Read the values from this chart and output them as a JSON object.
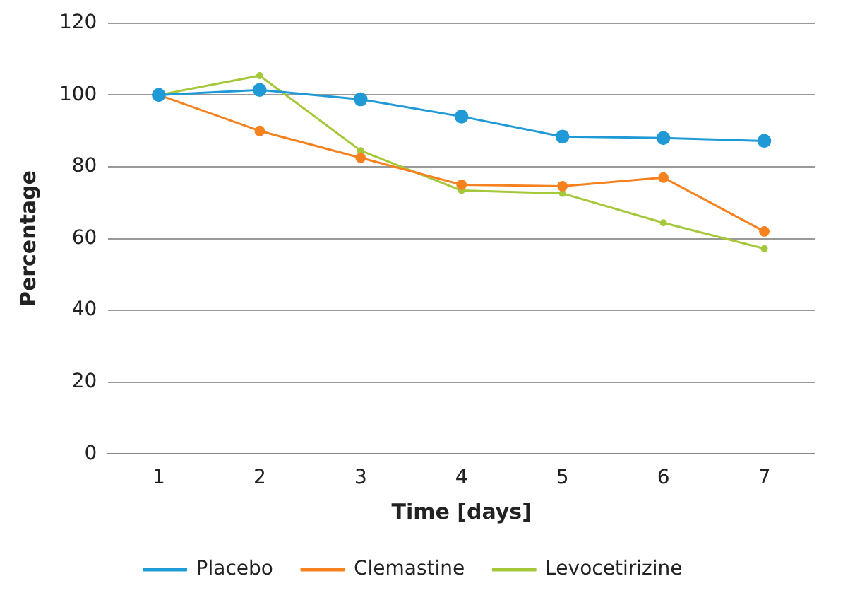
{
  "chart_data": {
    "type": "line",
    "xlabel": "Time [days]",
    "ylabel": "Percentage",
    "categories": [
      "1",
      "2",
      "3",
      "4",
      "5",
      "6",
      "7"
    ],
    "series": [
      {
        "name": "Placebo",
        "color": "#1f9ad6",
        "values": [
          100,
          101.4,
          98.8,
          94,
          88.4,
          88,
          87.2
        ]
      },
      {
        "name": "Clemastine",
        "color": "#f5821f",
        "values": [
          100,
          90,
          82.5,
          75,
          74.6,
          77,
          62
        ]
      },
      {
        "name": "Levocetirizine",
        "color": "#a5c83a",
        "values": [
          100,
          105.4,
          84.5,
          73.4,
          72.6,
          64.4,
          57.2
        ]
      }
    ],
    "ylim": [
      0,
      120
    ],
    "yticks": [
      0,
      20,
      40,
      60,
      80,
      100,
      120
    ],
    "grid": "y",
    "legend": "bottom",
    "marker": "circle",
    "line_style": "solid"
  }
}
